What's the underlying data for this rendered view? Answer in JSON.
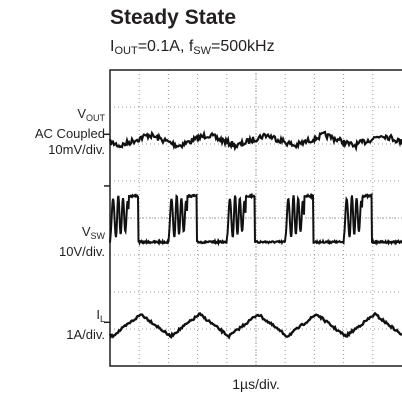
{
  "chart": {
    "title": "Steady State",
    "subtitle_parts": [
      {
        "t": "I",
        "sub": false
      },
      {
        "t": "OUT",
        "sub": true
      },
      {
        "t": "=0.1A, f",
        "sub": false
      },
      {
        "t": "SW",
        "sub": true
      },
      {
        "t": "=500kHz",
        "sub": false
      }
    ]
  },
  "labels": {
    "vout": {
      "main": "V",
      "sub": "OUT",
      "line2": "AC Coupled",
      "line3": "10mV/div."
    },
    "vsw": {
      "main": "V",
      "sub": "SW",
      "line2": "10V/div."
    },
    "il": {
      "main": "I",
      "sub": "L",
      "line2": "1A/div."
    },
    "xaxis": "1µs/div."
  },
  "chart_data": {
    "type": "line",
    "grid": true,
    "divisions": {
      "x": 10,
      "y": 8
    },
    "x_scale": "1µs/div.",
    "series": [
      {
        "name": "VOUT",
        "scale": "10mV/div.",
        "shape": "ripple",
        "period_div": 2,
        "peak_to_peak_div": 0.3
      },
      {
        "name": "VSW",
        "scale": "10V/div.",
        "shape": "switching-with-ringing",
        "period_div": 2,
        "amplitude_div": 1.3
      },
      {
        "name": "IL",
        "scale": "1A/div.",
        "shape": "triangle",
        "period_div": 2,
        "peak_to_peak_div": 0.25
      }
    ],
    "colors": {
      "trace": "#111111",
      "grid": "#9a9a9a",
      "frame": "#231f20"
    }
  }
}
